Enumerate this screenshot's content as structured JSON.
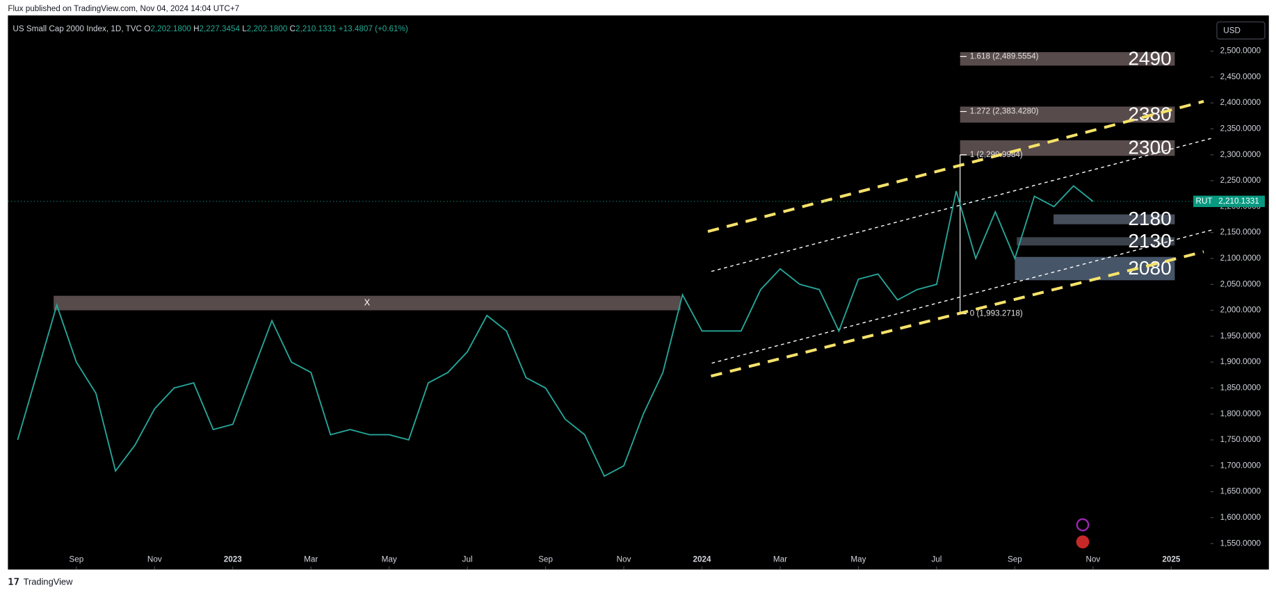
{
  "chart_data": {
    "type": "line",
    "publisher": "Flux published on TradingView.com, Nov 04, 2024 14:04 UTC+7",
    "legend": {
      "symbol": "US Small Cap 2000 Index, 1D, TVC",
      "open": [
        "O",
        "2,202.1800"
      ],
      "high": [
        "H",
        "2,227.3454"
      ],
      "low": [
        "L",
        "2,202.1800"
      ],
      "close": [
        "C",
        "2,210.1331"
      ],
      "change": "+13.4807 (+0.61%)"
    },
    "currency": "USD",
    "footer": "TradingView",
    "color": "#26a69a",
    "x": [
      -1.5,
      -1.0,
      -0.5,
      0,
      0.5,
      1.0,
      1.5,
      2.0,
      2.5,
      3.0,
      3.5,
      4.0,
      4.5,
      5.0,
      5.5,
      6.0,
      6.5,
      7.0,
      7.5,
      8.0,
      8.5,
      9.0,
      9.5,
      10.0,
      10.5,
      11.0,
      11.5,
      12.0,
      12.5,
      13.0,
      13.5,
      14.0,
      14.5,
      15.0,
      15.5,
      16.0,
      16.5,
      17.0,
      17.5,
      18.0,
      18.5,
      19.0,
      19.5,
      20.0,
      20.5,
      21.0,
      21.5,
      22.0,
      22.5,
      23.0,
      23.5,
      24.0,
      24.5,
      25.0,
      25.5,
      26.0
    ],
    "values": [
      1750,
      1880,
      2010,
      1900,
      1840,
      1690,
      1740,
      1810,
      1850,
      1860,
      1770,
      1780,
      1880,
      1980,
      1900,
      1880,
      1760,
      1770,
      1760,
      1760,
      1750,
      1860,
      1880,
      1920,
      1990,
      1960,
      1870,
      1850,
      1790,
      1760,
      1680,
      1700,
      1800,
      1880,
      2030,
      1960,
      1960,
      1960,
      2040,
      2080,
      2050,
      2040,
      1960,
      2060,
      2070,
      2020,
      2040,
      2050,
      2230,
      2100,
      2190,
      2100,
      2220,
      2200,
      2240,
      2210
    ],
    "xlim": [
      -1.75,
      29.0
    ],
    "xticks": [
      {
        "value": 0,
        "label": "Sep"
      },
      {
        "value": 2,
        "label": "Nov"
      },
      {
        "value": 4,
        "label": "2023"
      },
      {
        "value": 6,
        "label": "Mar"
      },
      {
        "value": 8,
        "label": "May"
      },
      {
        "value": 10,
        "label": "Jul"
      },
      {
        "value": 12,
        "label": "Sep"
      },
      {
        "value": 14,
        "label": "Nov"
      },
      {
        "value": 16,
        "label": "2024"
      },
      {
        "value": 18,
        "label": "Mar"
      },
      {
        "value": 20,
        "label": "May"
      },
      {
        "value": 22,
        "label": "Jul"
      },
      {
        "value": 24,
        "label": "Sep"
      },
      {
        "value": 26,
        "label": "Nov"
      },
      {
        "value": 28,
        "label": "2025"
      }
    ],
    "ylim": [
      1525,
      2550
    ],
    "yticks": [
      {
        "value": 1550,
        "label": "1,550.0000"
      },
      {
        "value": 1600,
        "label": "1,600.0000"
      },
      {
        "value": 1650,
        "label": "1,650.0000"
      },
      {
        "value": 1700,
        "label": "1,700.0000"
      },
      {
        "value": 1750,
        "label": "1,750.0000"
      },
      {
        "value": 1800,
        "label": "1,800.0000"
      },
      {
        "value": 1850,
        "label": "1,850.0000"
      },
      {
        "value": 1900,
        "label": "1,900.0000"
      },
      {
        "value": 1950,
        "label": "1,950.0000"
      },
      {
        "value": 2000,
        "label": "2,000.0000"
      },
      {
        "value": 2050,
        "label": "2,050.0000"
      },
      {
        "value": 2100,
        "label": "2,100.0000"
      },
      {
        "value": 2150,
        "label": "2,150.0000"
      },
      {
        "value": 2200,
        "label": "2,200.0000"
      },
      {
        "value": 2250,
        "label": "2,250.0000"
      },
      {
        "value": 2300,
        "label": "2,300.0000"
      },
      {
        "value": 2350,
        "label": "2,350.0000"
      },
      {
        "value": 2400,
        "label": "2,400.0000"
      },
      {
        "value": 2450,
        "label": "2,450.0000"
      },
      {
        "value": 2500,
        "label": "2,500.0000"
      }
    ],
    "last_price": {
      "symbol": "RUT",
      "value": 2210.1331,
      "label": "2,210.1331",
      "color": "#089981"
    },
    "zones": [
      {
        "label": "2490",
        "range": [
          2472,
          2498
        ],
        "x": [
          22.6,
          28.09
        ],
        "color": "#5d4f4f"
      },
      {
        "label": "2380",
        "range": [
          2362,
          2393
        ],
        "x": [
          22.6,
          28.09
        ],
        "color": "#5d4f4f"
      },
      {
        "label": "2300",
        "range": [
          2298,
          2328
        ],
        "x": [
          22.6,
          28.09
        ],
        "color": "#5d4f4f"
      },
      {
        "label": "2180",
        "range": [
          2166,
          2185
        ],
        "x": [
          24.99,
          28.09
        ],
        "color": "#4a5260"
      },
      {
        "label": "2130",
        "range": [
          2125,
          2141
        ],
        "x": [
          24.05,
          28.09
        ],
        "color": "#3f4650"
      },
      {
        "label": "2080",
        "range": [
          2058,
          2103
        ],
        "x": [
          24.0,
          28.09
        ],
        "color": "#4a5a6e"
      },
      {
        "label": "X",
        "range": [
          2000,
          2028
        ],
        "x": [
          -0.58,
          15.45
        ],
        "color": "#5d4f4f"
      }
    ],
    "fib_levels": [
      {
        "label": "1.618 (2,489.5554)",
        "value": 2489.5554
      },
      {
        "label": "1.272 (2,383.4280)",
        "value": 2383.428
      },
      {
        "label": "1 (2,299.9984)",
        "value": 2299.9984
      },
      {
        "label": "0 (1,993.2718)",
        "value": 1993.2718
      }
    ],
    "trendlines": [
      {
        "x": [
          16.15,
          28.83
        ],
        "y": [
          2152,
          2403
        ],
        "color": "#f5e26a",
        "width": 3.5,
        "dash": "14 10"
      },
      {
        "x": [
          16.23,
          28.83
        ],
        "y": [
          1873,
          2113
        ],
        "color": "#f5e26a",
        "width": 3.5,
        "dash": "14 10"
      },
      {
        "x": [
          16.24,
          29.04
        ],
        "y": [
          2075,
          2332
        ],
        "color": "#ffffff",
        "width": 1.2,
        "dash": "4 4"
      },
      {
        "x": [
          16.25,
          29.04
        ],
        "y": [
          1898,
          2155
        ],
        "color": "#ffffff",
        "width": 1.2,
        "dash": "4 4"
      }
    ]
  }
}
